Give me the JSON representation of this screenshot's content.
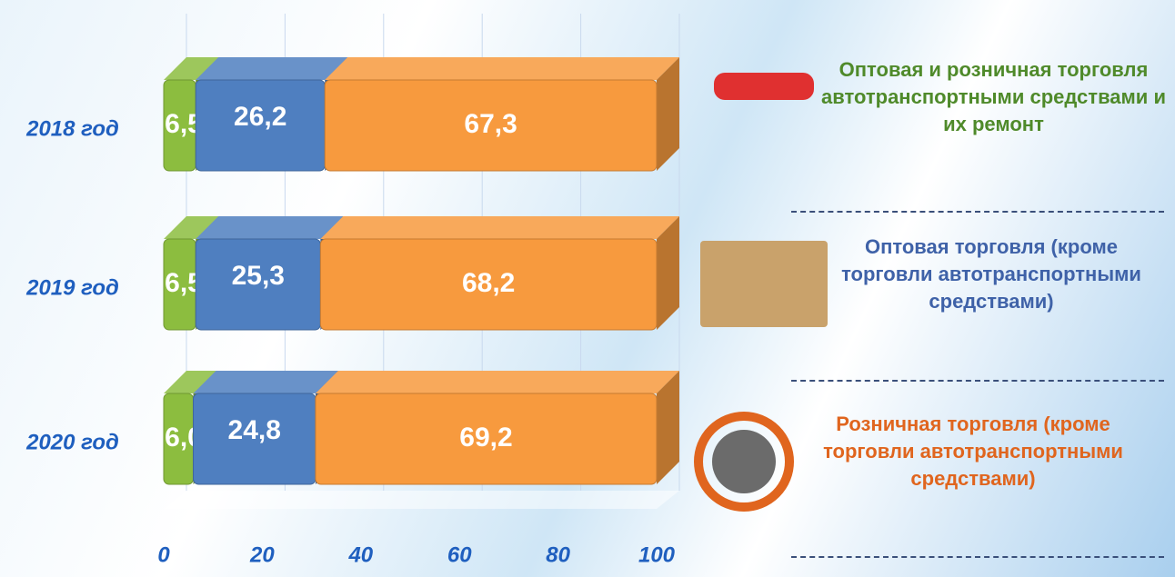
{
  "chart_data": {
    "type": "bar",
    "orientation": "horizontal",
    "stacked": true,
    "categories": [
      "2018 год",
      "2019 год",
      "2020 год"
    ],
    "series": [
      {
        "name": "Оптовая и розничная торговля автотранспортными средствами и их ремонт",
        "color": "#8cbd3f",
        "legend_color": "#4f8a2a",
        "values": [
          6.5,
          6.5,
          6.0
        ],
        "value_labels": [
          "6,5",
          "6,5",
          "6,0"
        ]
      },
      {
        "name": "Оптовая торговля (кроме торговли автотранспортными средствами)",
        "color": "#4f7fc0",
        "legend_color": "#3f62a8",
        "values": [
          26.2,
          25.3,
          24.8
        ],
        "value_labels": [
          "26,2",
          "25,3",
          "24,8"
        ]
      },
      {
        "name": "Розничная торговля (кроме торговли автотранспортными средствами)",
        "color": "#f79a3e",
        "legend_color": "#e0651e",
        "values": [
          67.3,
          68.2,
          69.2
        ],
        "value_labels": [
          "67,3",
          "68,2",
          "69,2"
        ]
      }
    ],
    "xlim": [
      0,
      100
    ],
    "xticks": [
      0,
      20,
      40,
      60,
      80,
      100
    ],
    "grid": true
  }
}
